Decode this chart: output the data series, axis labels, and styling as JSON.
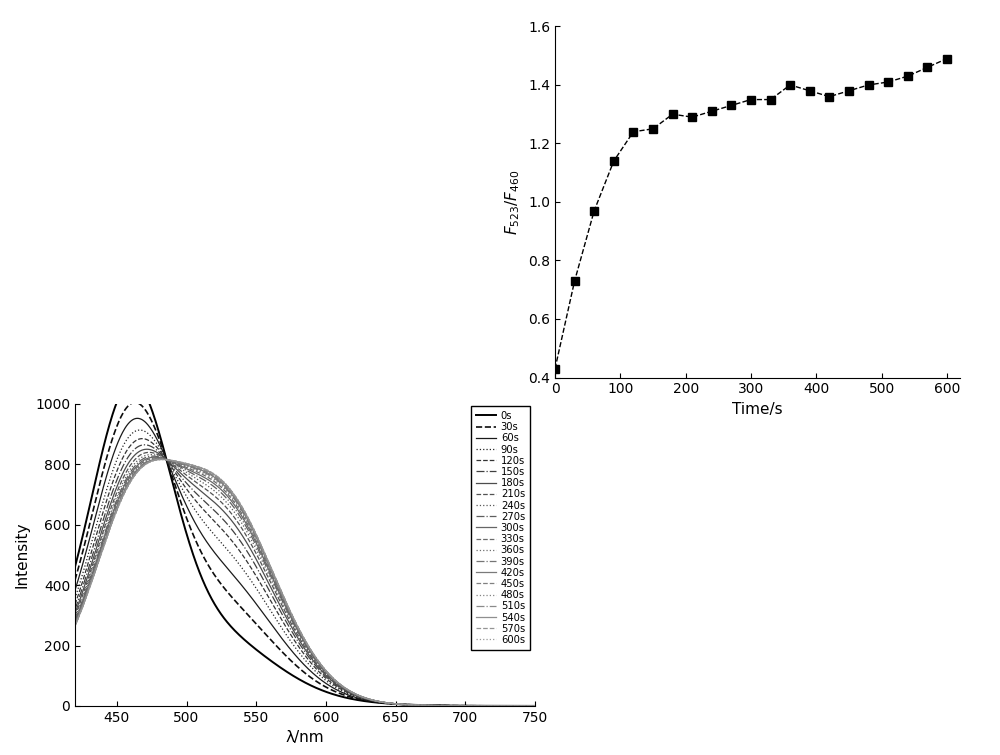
{
  "top_right": {
    "time_points": [
      0,
      30,
      60,
      90,
      120,
      150,
      180,
      210,
      240,
      270,
      300,
      330,
      360,
      390,
      420,
      450,
      480,
      510,
      540,
      570,
      600
    ],
    "ratio_values": [
      0.43,
      0.73,
      0.97,
      1.14,
      1.24,
      1.25,
      1.3,
      1.29,
      1.31,
      1.33,
      1.35,
      1.35,
      1.4,
      1.38,
      1.36,
      1.38,
      1.4,
      1.41,
      1.43,
      1.46,
      1.49
    ],
    "xlabel": "Time/s",
    "xlim": [
      0,
      620
    ],
    "ylim": [
      0.4,
      1.6
    ],
    "yticks": [
      0.4,
      0.6,
      0.8,
      1.0,
      1.2,
      1.4,
      1.6
    ],
    "xticks": [
      0,
      100,
      200,
      300,
      400,
      500,
      600
    ],
    "marker": "s",
    "markersize": 6,
    "color": "black",
    "linewidth": 1.0,
    "linestyle": "--"
  },
  "bottom_left": {
    "xlabel": "λ/nm",
    "ylabel": "Intensity",
    "xlim": [
      420,
      750
    ],
    "ylim": [
      0,
      1000
    ],
    "yticks": [
      0,
      200,
      400,
      600,
      800,
      1000
    ],
    "xticks": [
      450,
      500,
      550,
      600,
      650,
      700,
      750
    ],
    "legend_labels": [
      "0s",
      "30s",
      "60s",
      "90s",
      "120s",
      "150s",
      "180s",
      "210s",
      "240s",
      "270s",
      "300s",
      "330s",
      "360s",
      "390s",
      "420s",
      "450s",
      "480s",
      "510s",
      "540s",
      "570s",
      "600s"
    ],
    "time_steps_sec": [
      0,
      30,
      60,
      90,
      120,
      150,
      180,
      210,
      240,
      270,
      300,
      330,
      360,
      390,
      420,
      450,
      480,
      510,
      540,
      570,
      600
    ]
  }
}
